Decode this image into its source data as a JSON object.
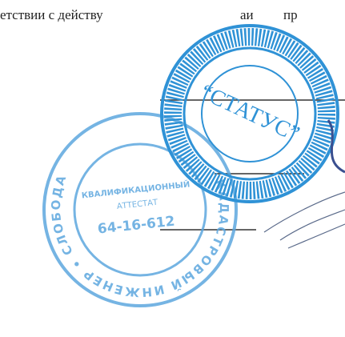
{
  "document": {
    "line_text": "етствии с действу",
    "line_text_2": "аи",
    "line_text_3": "пр",
    "stamp_1": {
      "center": "“СТАТУС”"
    },
    "stamp_2": {
      "ring": "КАДАСТРОВЫЙ ИНЖЕНЕР • СЛОБОДА",
      "center_line_1": "КВАЛИФИКАЦИОННЫЙ",
      "center_line_2": "АТТЕСТАТ",
      "number": "64-16-612"
    }
  }
}
